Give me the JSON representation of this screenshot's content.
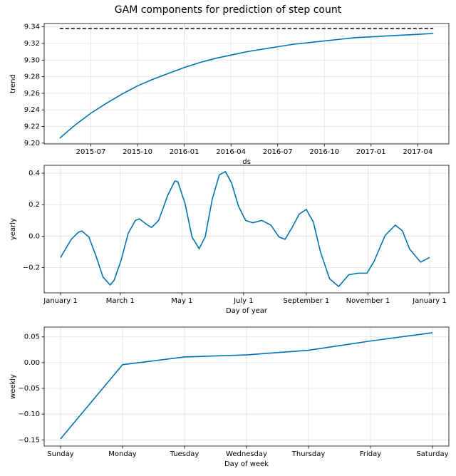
{
  "title": "GAM components for prediction of step count",
  "chart_data": [
    {
      "type": "line",
      "xlabel": "ds",
      "ylabel": "trend",
      "x": [
        "2015-05",
        "2015-06",
        "2015-07",
        "2015-08",
        "2015-09",
        "2015-10",
        "2015-11",
        "2015-12",
        "2016-01",
        "2016-02",
        "2016-03",
        "2016-04",
        "2016-05",
        "2016-06",
        "2016-07",
        "2016-08",
        "2016-09",
        "2016-10",
        "2016-11",
        "2016-12",
        "2017-01",
        "2017-02",
        "2017-03",
        "2017-04",
        "2017-05"
      ],
      "series": [
        {
          "color": "#0072B2",
          "values": [
            9.206,
            9.222,
            9.236,
            9.248,
            9.259,
            9.269,
            9.277,
            9.284,
            9.291,
            9.297,
            9.302,
            9.306,
            9.31,
            9.313,
            9.316,
            9.319,
            9.321,
            9.323,
            9.325,
            9.327,
            9.328,
            9.329,
            9.33,
            9.331,
            9.332
          ]
        },
        {
          "color": "#000000",
          "dash": true,
          "values": [
            9.338,
            9.338,
            9.338,
            9.338,
            9.338,
            9.338,
            9.338,
            9.338,
            9.338,
            9.338,
            9.338,
            9.338,
            9.338,
            9.338,
            9.338,
            9.338,
            9.338,
            9.338,
            9.338,
            9.338,
            9.338,
            9.338,
            9.338,
            9.338,
            9.338
          ]
        }
      ],
      "xlim": [
        "2015-04",
        "2017-06"
      ],
      "xticks": [
        "2015-07",
        "2015-10",
        "2016-01",
        "2016-04",
        "2016-07",
        "2016-10",
        "2017-01",
        "2017-04"
      ],
      "ylim": [
        9.199,
        9.344
      ],
      "yticks": [
        {
          "value": 9.2,
          "label": "9.20"
        },
        9.22,
        9.24,
        9.26,
        9.28,
        {
          "value": 9.3,
          "label": "9.30"
        },
        9.32,
        9.34
      ],
      "grid": true
    },
    {
      "type": "line",
      "xlabel": "Day of year",
      "ylabel": "yearly",
      "x": [
        0,
        10.6,
        17.6,
        21,
        28,
        35,
        42,
        49,
        53,
        60,
        67,
        74,
        78,
        85,
        90,
        97,
        106,
        113,
        116,
        123,
        130,
        137,
        143,
        150,
        157,
        163,
        169,
        176,
        183,
        190,
        199,
        208,
        216,
        222,
        229,
        236,
        243,
        250,
        257,
        266,
        275,
        285,
        294,
        303,
        310,
        321,
        331,
        338,
        345,
        356,
        365
      ],
      "series": [
        {
          "color": "#0072B2",
          "values": [
            -0.135,
            -0.02,
            0.025,
            0.033,
            -0.005,
            -0.125,
            -0.26,
            -0.31,
            -0.28,
            -0.15,
            0.02,
            0.1,
            0.11,
            0.075,
            0.055,
            0.1,
            0.26,
            0.35,
            0.345,
            0.21,
            -0.005,
            -0.08,
            -0.005,
            0.235,
            0.39,
            0.41,
            0.34,
            0.19,
            0.1,
            0.085,
            0.1,
            0.07,
            -0.005,
            -0.02,
            0.055,
            0.14,
            0.17,
            0.09,
            -0.1,
            -0.27,
            -0.32,
            -0.245,
            -0.235,
            -0.235,
            -0.16,
            0.005,
            0.07,
            0.035,
            -0.08,
            -0.165,
            -0.135
          ]
        }
      ],
      "xlim": [
        -16.2,
        384
      ],
      "xticks": [
        {
          "value": 0,
          "label": "January 1"
        },
        {
          "value": 59,
          "label": "March 1"
        },
        {
          "value": 120,
          "label": "May 1"
        },
        {
          "value": 181,
          "label": "July 1"
        },
        {
          "value": 243,
          "label": "September 1"
        },
        {
          "value": 304,
          "label": "November 1"
        },
        {
          "value": 365,
          "label": "January 1"
        }
      ],
      "ylim": [
        -0.36,
        0.45
      ],
      "yticks": [
        {
          "value": -0.2,
          "label": "−0.2"
        },
        {
          "value": 0,
          "label": "0.0"
        },
        0.2,
        0.4
      ],
      "grid": true
    },
    {
      "type": "line",
      "xlabel": "Day of week",
      "ylabel": "weekly",
      "categories": [
        "Sunday",
        "Monday",
        "Tuesday",
        "Wednesday",
        "Thursday",
        "Friday",
        "Saturday"
      ],
      "series": [
        {
          "color": "#0072B2",
          "values": [
            -0.148,
            -0.004,
            0.011,
            0.015,
            0.024,
            0.042,
            0.058
          ]
        }
      ],
      "ylim": [
        -0.162,
        0.069
      ],
      "yticks": [
        {
          "value": -0.15,
          "label": "−0.15"
        },
        {
          "value": -0.1,
          "label": "−0.10"
        },
        {
          "value": -0.05,
          "label": "−0.05"
        },
        {
          "value": 0,
          "label": "0.00"
        },
        0.05
      ],
      "grid": true
    }
  ]
}
